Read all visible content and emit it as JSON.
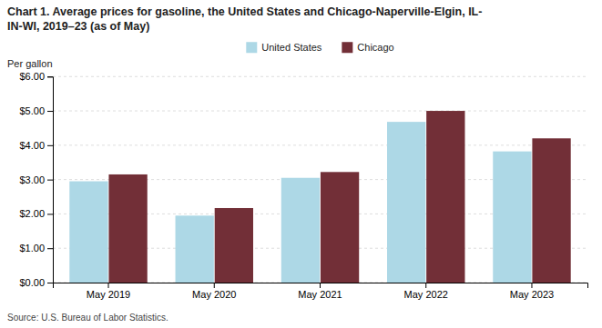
{
  "chart_data": {
    "type": "bar",
    "title": "Chart 1. Average prices for gasoline, the United States and Chicago-Naperville-Elgin, IL-\nIN-WI, 2019–23 (as of May)",
    "ylabel": "Per gallon",
    "source": "Source: U.S. Bureau of Labor Statistics.",
    "categories": [
      "May 2019",
      "May 2020",
      "May 2021",
      "May 2022",
      "May 2023"
    ],
    "series": [
      {
        "name": "United States",
        "color": "#ADD8E6",
        "values": [
          2.95,
          1.95,
          3.05,
          4.68,
          3.82
        ]
      },
      {
        "name": "Chicago",
        "color": "#722F37",
        "values": [
          3.15,
          2.17,
          3.22,
          5.0,
          4.2
        ]
      }
    ],
    "ylim": [
      0,
      6.0
    ],
    "yticks": [
      {
        "value": 0.0,
        "label": "$0.00"
      },
      {
        "value": 1.0,
        "label": "$1.00"
      },
      {
        "value": 2.0,
        "label": "$2.00"
      },
      {
        "value": 3.0,
        "label": "$3.00"
      },
      {
        "value": 4.0,
        "label": "$4.00"
      },
      {
        "value": 5.0,
        "label": "$5.00"
      },
      {
        "value": 6.0,
        "label": "$6.00"
      }
    ],
    "grid": true,
    "legend": "top"
  }
}
